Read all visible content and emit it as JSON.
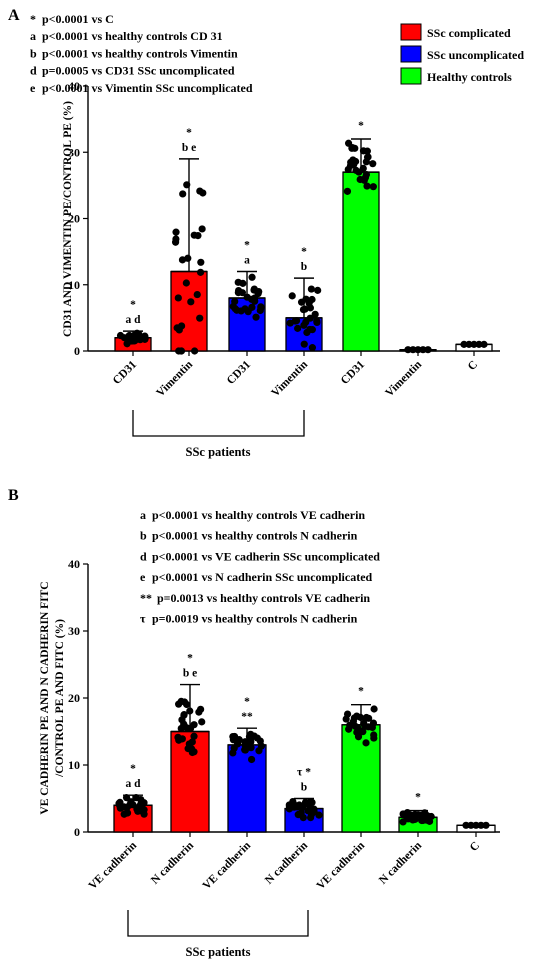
{
  "chart_data": [
    {
      "type": "bar",
      "panel": "A",
      "ylabel": "CD31 AND VIMENTIN PE/CONTROL PE (%)",
      "ylim": [
        0,
        40
      ],
      "yticks": [
        0,
        10,
        20,
        30,
        40
      ],
      "categories": [
        "CD31",
        "Vimentin",
        "CD31",
        "Vimentin",
        "CD31",
        "Vimentin",
        "C"
      ],
      "values": [
        2,
        12,
        8,
        5,
        27,
        0.2,
        1
      ],
      "error_max": [
        3,
        29,
        12,
        11,
        32,
        0.4,
        1
      ],
      "group_colors": [
        "#ff0000",
        "#ff0000",
        "#0000ff",
        "#0000ff",
        "#00ff00",
        "#00ff00",
        "#ffffff"
      ],
      "annotations": [
        {
          "star": "*",
          "letters": "a d"
        },
        {
          "star": "*",
          "letters": "b e"
        },
        {
          "star": "*",
          "letters": "a"
        },
        {
          "star": "*",
          "letters": "b"
        },
        {
          "star": "*",
          "letters": ""
        },
        {
          "star": "",
          "letters": ""
        },
        {
          "star": "",
          "letters": ""
        }
      ],
      "notes": [
        {
          "sym": "*",
          "text": "p<0.0001 vs C"
        },
        {
          "sym": "a",
          "text": "p<0.0001 vs healthy controls CD 31"
        },
        {
          "sym": "b",
          "text": "p<0.0001 vs healthy controls Vimentin"
        },
        {
          "sym": "d",
          "text": "p=0.0005 vs CD31 SSc uncomplicated"
        },
        {
          "sym": "e",
          "text": "p<0.0001 vs Vimentin SSc uncomplicated"
        }
      ],
      "legend": [
        {
          "label": "SSc complicated",
          "color": "#ff0000"
        },
        {
          "label": "SSc uncomplicated",
          "color": "#0000ff"
        },
        {
          "label": "Healthy controls",
          "color": "#00ff00"
        }
      ],
      "group_label": "SSc patients",
      "grid": false
    },
    {
      "type": "bar",
      "panel": "B",
      "ylabel_lines": [
        "VE CADHERIN PE AND N CADHERIN FITC",
        "/CONTROL PE AND FITC (%)"
      ],
      "ylim": [
        0,
        40
      ],
      "yticks": [
        0,
        10,
        20,
        30,
        40
      ],
      "categories": [
        "VE cadherin",
        "N cadherin",
        "VE cadherin",
        "N cadherin",
        "VE cadherin",
        "N cadherin",
        "C"
      ],
      "values": [
        4,
        15,
        13,
        3.5,
        16,
        2.2,
        1
      ],
      "error_max": [
        5.5,
        22,
        15.5,
        5,
        19,
        3.2,
        1
      ],
      "group_colors": [
        "#ff0000",
        "#ff0000",
        "#0000ff",
        "#0000ff",
        "#00ff00",
        "#00ff00",
        "#ffffff"
      ],
      "annotations": [
        {
          "star": "*",
          "letters": "a d"
        },
        {
          "star": "*",
          "letters": "b e"
        },
        {
          "star": "*",
          "letters": "**"
        },
        {
          "star": "τ *",
          "letters": "b"
        },
        {
          "star": "*",
          "letters": ""
        },
        {
          "star": "*",
          "letters": ""
        },
        {
          "star": "",
          "letters": ""
        }
      ],
      "notes": [
        {
          "sym": "a",
          "text": "p<0.0001 vs healthy controls VE cadherin"
        },
        {
          "sym": "b",
          "text": "p<0.0001 vs healthy controls N cadherin"
        },
        {
          "sym": "d",
          "text": "p<0.0001 vs VE cadherin SSc uncomplicated"
        },
        {
          "sym": "e",
          "text": "p<0.0001 vs N cadherin SSc uncomplicated"
        },
        {
          "sym": "**",
          "text": "p=0.0013 vs healthy controls VE cadherin"
        },
        {
          "sym": "τ",
          "text": "p=0.0019 vs healthy controls N cadherin"
        }
      ],
      "group_label": "SSc patients",
      "grid": false
    }
  ]
}
